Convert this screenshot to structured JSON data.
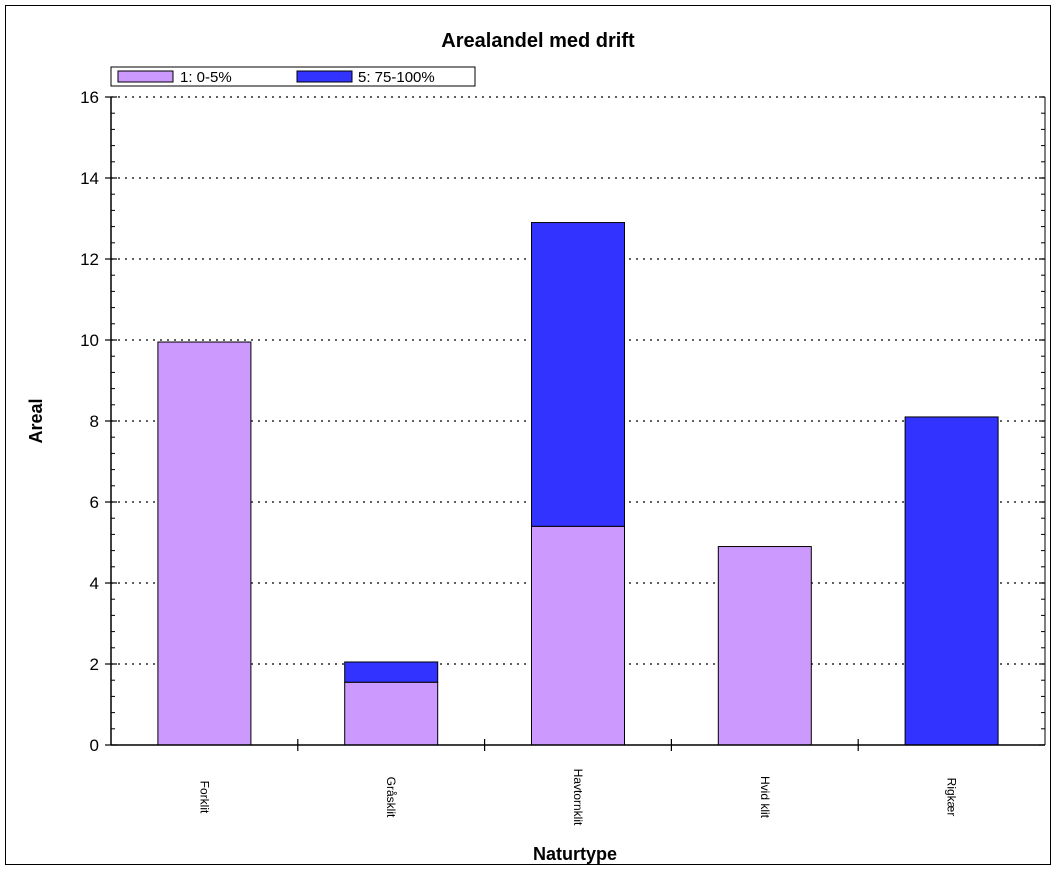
{
  "chart_data": {
    "type": "bar",
    "stacked": true,
    "title": "Arealandel med drift",
    "xlabel": "Naturtype",
    "ylabel": "Areal",
    "ylim": [
      0,
      16
    ],
    "yticks": [
      0,
      2,
      4,
      6,
      8,
      10,
      12,
      14,
      16
    ],
    "grid": true,
    "legend_position": "top-left",
    "categories": [
      "Forklit",
      "Gråsklit",
      "Havtornklit",
      "Hvid klit",
      "Rigkær"
    ],
    "series": [
      {
        "name": "1: 0-5%",
        "color": "#cc99ff",
        "values": [
          9.95,
          1.55,
          5.4,
          4.9,
          0
        ]
      },
      {
        "name": "5: 75-100%",
        "color": "#3333ff",
        "values": [
          0,
          0.5,
          7.5,
          0,
          8.1
        ]
      }
    ]
  }
}
